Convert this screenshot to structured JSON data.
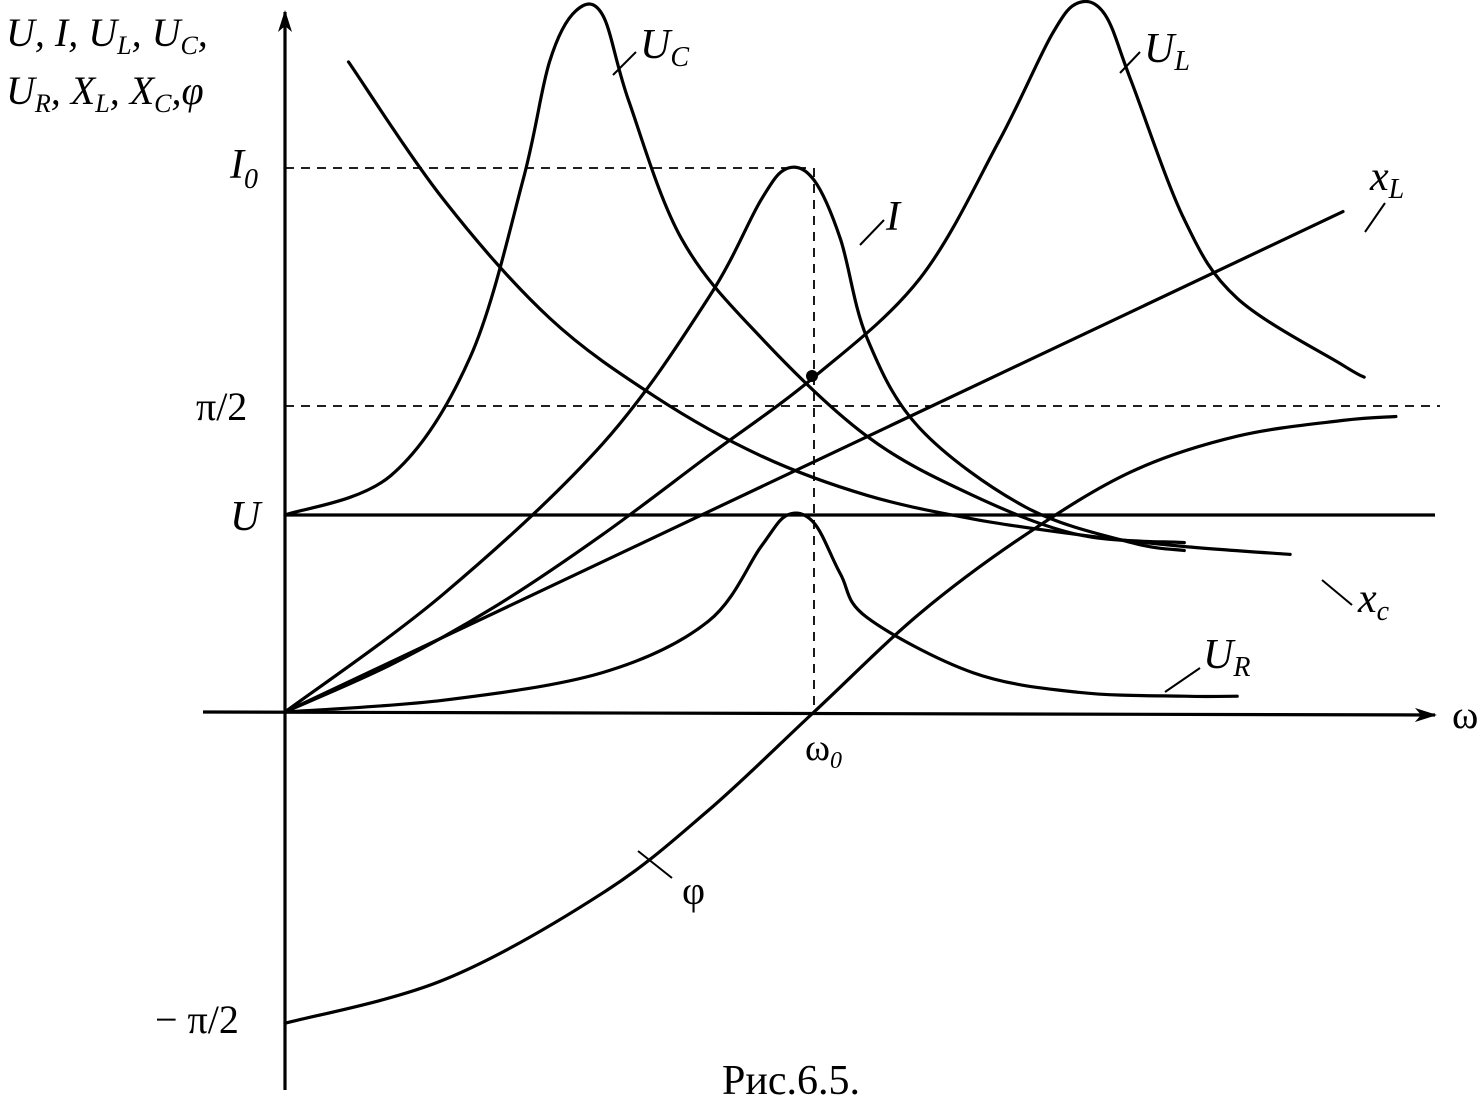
{
  "chart_data": {
    "type": "line",
    "title": "",
    "caption": "Рис.6.5.",
    "xlabel": "ω",
    "ylabel_line1": "U, I, UL, UC,",
    "ylabel_line2": "UR, XL, XC,φ",
    "x_tick": "ω",
    "x_tick_sub": "0",
    "y_ticks": [
      {
        "id": "I0",
        "label": "I",
        "sub": "0",
        "value": 1.38
      },
      {
        "id": "pi2",
        "label": "π/2",
        "value": 0.79
      },
      {
        "id": "U",
        "label": "U",
        "value": 0.5
      },
      {
        "id": "mpi2",
        "label": "− π/2",
        "value": -0.79
      }
    ],
    "xlim": [
      0,
      2.2
    ],
    "ylim": [
      -0.95,
      1.8
    ],
    "series": [
      {
        "id": "UC",
        "name": "U",
        "sub": "C",
        "x": [
          0.0,
          0.2,
          0.35,
          0.45,
          0.5,
          0.55,
          0.6,
          0.65,
          0.75,
          0.9,
          1.1,
          1.3,
          1.5,
          1.7
        ],
        "y": [
          0.5,
          0.6,
          0.9,
          1.35,
          1.65,
          1.78,
          1.77,
          1.55,
          1.2,
          0.95,
          0.7,
          0.55,
          0.45,
          0.43
        ]
      },
      {
        "id": "UL",
        "name": "U",
        "sub": "L",
        "x": [
          0.0,
          0.2,
          0.4,
          0.6,
          0.8,
          1.0,
          1.2,
          1.35,
          1.45,
          1.5,
          1.55,
          1.6,
          1.7,
          1.8,
          2.0,
          2.04
        ],
        "y": [
          0.0,
          0.12,
          0.27,
          0.45,
          0.65,
          0.85,
          1.1,
          1.45,
          1.72,
          1.8,
          1.77,
          1.6,
          1.25,
          1.05,
          0.88,
          0.85
        ]
      },
      {
        "id": "I",
        "name": "I",
        "sub": "",
        "x": [
          0.0,
          0.3,
          0.6,
          0.8,
          0.9,
          0.95,
          1.0,
          1.05,
          1.1,
          1.2,
          1.4,
          1.6,
          1.7
        ],
        "y": [
          0.0,
          0.3,
          0.68,
          1.05,
          1.3,
          1.38,
          1.35,
          1.2,
          0.95,
          0.72,
          0.52,
          0.43,
          0.41
        ]
      },
      {
        "id": "XL",
        "name": "x",
        "sub": "L",
        "x": [
          0.0,
          2.0
        ],
        "y": [
          0.0,
          1.27
        ]
      },
      {
        "id": "XC",
        "name": "x",
        "sub": "c",
        "x": [
          0.12,
          0.3,
          0.5,
          0.7,
          0.9,
          1.1,
          1.3,
          1.5,
          1.7,
          1.9
        ],
        "y": [
          1.65,
          1.3,
          1.0,
          0.8,
          0.65,
          0.55,
          0.49,
          0.45,
          0.42,
          0.4
        ]
      },
      {
        "id": "UR",
        "name": "U",
        "sub": "R",
        "x": [
          0.0,
          0.3,
          0.6,
          0.8,
          0.9,
          0.95,
          1.0,
          1.05,
          1.1,
          1.3,
          1.5,
          1.7,
          1.8
        ],
        "y": [
          0.0,
          0.03,
          0.1,
          0.23,
          0.42,
          0.5,
          0.48,
          0.35,
          0.24,
          0.1,
          0.05,
          0.04,
          0.04
        ]
      },
      {
        "id": "phi",
        "name": "φ",
        "sub": "",
        "x": [
          0.0,
          0.3,
          0.6,
          0.8,
          1.0,
          1.2,
          1.4,
          1.6,
          1.8,
          2.0,
          2.1
        ],
        "y": [
          -0.79,
          -0.68,
          -0.46,
          -0.25,
          0.0,
          0.25,
          0.45,
          0.61,
          0.7,
          0.74,
          0.75
        ]
      }
    ],
    "annotations": [
      {
        "id": "res-point",
        "x": 1.0,
        "y": 0.85,
        "text": ""
      }
    ],
    "grid": false,
    "legend": "inline"
  }
}
